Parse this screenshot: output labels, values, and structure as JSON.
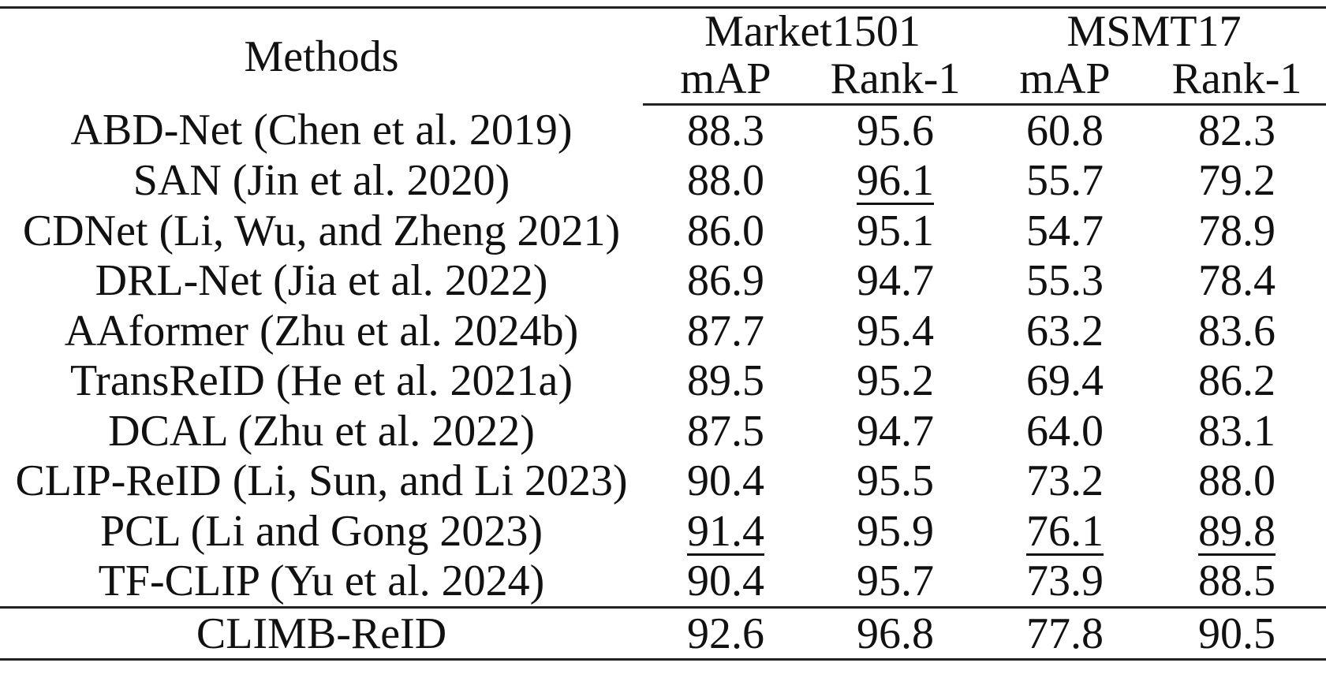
{
  "table": {
    "header": {
      "methods_label": "Methods",
      "groups": [
        "Market1501",
        "MSMT17"
      ],
      "subcolumns": [
        "mAP",
        "Rank-1",
        "mAP",
        "Rank-1"
      ]
    },
    "rows": [
      {
        "method": "ABD-Net (Chen et al. 2019)",
        "values": [
          "88.3",
          "95.6",
          "60.8",
          "82.3"
        ],
        "underline": [
          false,
          false,
          false,
          false
        ]
      },
      {
        "method": "SAN (Jin et al. 2020)",
        "values": [
          "88.0",
          "96.1",
          "55.7",
          "79.2"
        ],
        "underline": [
          false,
          true,
          false,
          false
        ]
      },
      {
        "method": "CDNet (Li, Wu, and Zheng 2021)",
        "values": [
          "86.0",
          "95.1",
          "54.7",
          "78.9"
        ],
        "underline": [
          false,
          false,
          false,
          false
        ]
      },
      {
        "method": "DRL-Net (Jia et al. 2022)",
        "values": [
          "86.9",
          "94.7",
          "55.3",
          "78.4"
        ],
        "underline": [
          false,
          false,
          false,
          false
        ]
      },
      {
        "method": "AAformer (Zhu et al. 2024b)",
        "values": [
          "87.7",
          "95.4",
          "63.2",
          "83.6"
        ],
        "underline": [
          false,
          false,
          false,
          false
        ]
      },
      {
        "method": "TransReID (He et al. 2021a)",
        "values": [
          "89.5",
          "95.2",
          "69.4",
          "86.2"
        ],
        "underline": [
          false,
          false,
          false,
          false
        ]
      },
      {
        "method": "DCAL (Zhu et al. 2022)",
        "values": [
          "87.5",
          "94.7",
          "64.0",
          "83.1"
        ],
        "underline": [
          false,
          false,
          false,
          false
        ]
      },
      {
        "method": "CLIP-ReID (Li, Sun, and Li 2023)",
        "values": [
          "90.4",
          "95.5",
          "73.2",
          "88.0"
        ],
        "underline": [
          false,
          false,
          false,
          false
        ]
      },
      {
        "method": "PCL (Li and Gong 2023)",
        "values": [
          "91.4",
          "95.9",
          "76.1",
          "89.8"
        ],
        "underline": [
          true,
          false,
          true,
          true
        ]
      },
      {
        "method": "TF-CLIP (Yu et al. 2024)",
        "values": [
          "90.4",
          "95.7",
          "73.9",
          "88.5"
        ],
        "underline": [
          false,
          false,
          false,
          false
        ]
      }
    ],
    "ours": {
      "method": "CLIMB-ReID",
      "values": [
        "92.6",
        "96.8",
        "77.8",
        "90.5"
      ]
    }
  }
}
